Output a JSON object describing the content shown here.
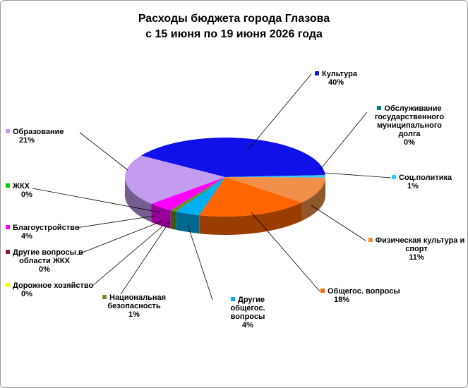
{
  "chart_data": {
    "type": "pie",
    "title": "Расходы бюджета города Глазова",
    "subtitle": "с 15 июня по 19 июня 2026 года",
    "categories": [
      "Культура",
      "Обслуживание государственного муниципального долга",
      "Соц.политика",
      "Физическая культура и спорт",
      "Общегос. вопросы",
      "Другие общегос. вопросы",
      "Национальная безопасность",
      "Дорожное хозяйство",
      "Другие вопросы в области ЖКХ",
      "Благоустройство",
      "ЖКХ",
      "Образование"
    ],
    "values": [
      40,
      0,
      1,
      11,
      18,
      4,
      1,
      0,
      0,
      4,
      0,
      21
    ],
    "value_labels": [
      "40%",
      "0%",
      "1%",
      "11%",
      "18%",
      "4%",
      "1%",
      "0%",
      "0%",
      "4%",
      "0%",
      "21%"
    ],
    "colors": [
      "#1010e8",
      "#008080",
      "#33ccff",
      "#f0904a",
      "#ff6600",
      "#00b0f0",
      "#6b8e23",
      "#ffff00",
      "#8b1a4a",
      "#ff00ff",
      "#00cc00",
      "#c39bef"
    ]
  }
}
